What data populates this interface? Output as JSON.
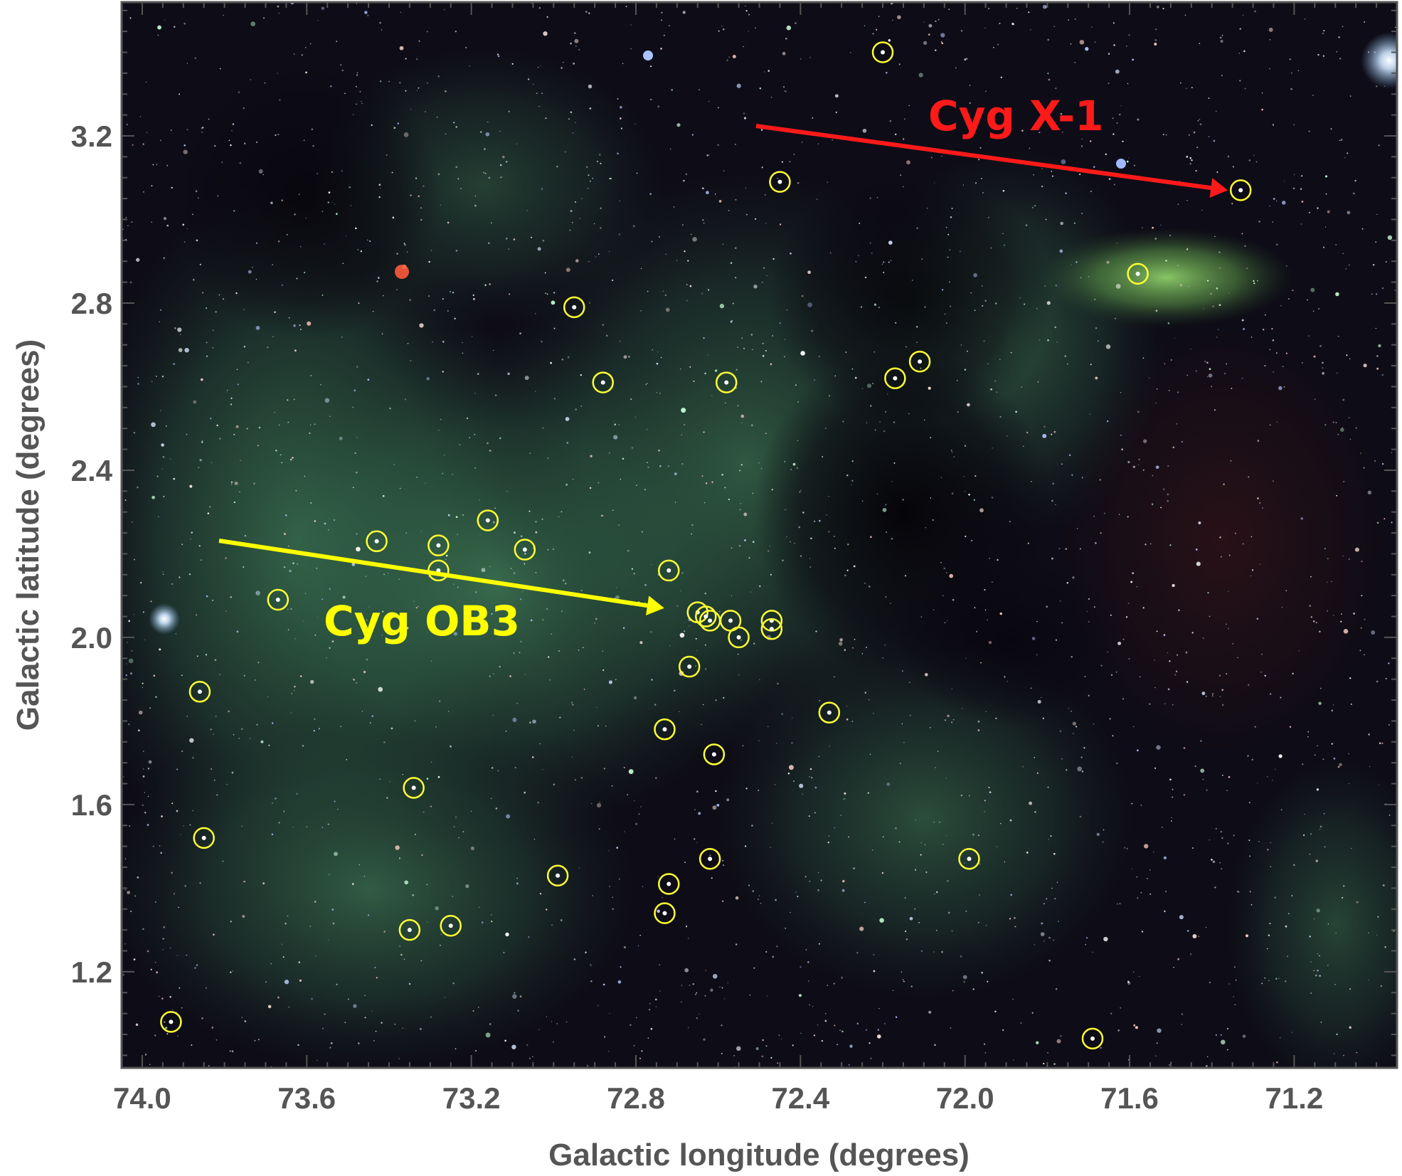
{
  "figure": {
    "x_axis_title": "Galactic longitude (degrees)",
    "y_axis_title": "Galactic latitude (degrees)",
    "x_range": [
      74.05,
      70.95
    ],
    "y_range": [
      0.97,
      3.52
    ],
    "x_tick_labels": [
      "74.0",
      "73.6",
      "73.2",
      "72.8",
      "72.4",
      "72.0",
      "71.6",
      "71.2"
    ],
    "y_tick_labels": [
      "1.2",
      "1.6",
      "2.0",
      "2.4",
      "2.8",
      "3.2"
    ],
    "background_image": "infrared sky mosaic: dark starfield with green nebulosity",
    "annotations": [
      {
        "label": "Cyg X-1",
        "color": "#ff1a1a",
        "target_l": 71.33,
        "target_b": 3.07
      },
      {
        "label": "Cyg OB3",
        "color": "#ffff00",
        "target_l": 72.7,
        "target_b": 2.07
      }
    ],
    "marker_color": "#ffff33",
    "marked_stars": [
      {
        "l": 72.2,
        "b": 3.4
      },
      {
        "l": 72.45,
        "b": 3.09
      },
      {
        "l": 71.33,
        "b": 3.07
      },
      {
        "l": 71.58,
        "b": 2.87
      },
      {
        "l": 72.95,
        "b": 2.79
      },
      {
        "l": 72.11,
        "b": 2.66
      },
      {
        "l": 72.17,
        "b": 2.62
      },
      {
        "l": 72.58,
        "b": 2.61
      },
      {
        "l": 72.88,
        "b": 2.61
      },
      {
        "l": 73.16,
        "b": 2.28
      },
      {
        "l": 73.43,
        "b": 2.23
      },
      {
        "l": 73.28,
        "b": 2.22
      },
      {
        "l": 73.07,
        "b": 2.21
      },
      {
        "l": 72.72,
        "b": 2.16
      },
      {
        "l": 73.28,
        "b": 2.16
      },
      {
        "l": 73.67,
        "b": 2.09
      },
      {
        "l": 72.65,
        "b": 2.06
      },
      {
        "l": 72.63,
        "b": 2.05
      },
      {
        "l": 72.62,
        "b": 2.04
      },
      {
        "l": 72.57,
        "b": 2.04
      },
      {
        "l": 72.47,
        "b": 2.04
      },
      {
        "l": 72.47,
        "b": 2.02
      },
      {
        "l": 72.55,
        "b": 2.0
      },
      {
        "l": 72.67,
        "b": 1.93
      },
      {
        "l": 73.86,
        "b": 1.87
      },
      {
        "l": 72.33,
        "b": 1.82
      },
      {
        "l": 72.73,
        "b": 1.78
      },
      {
        "l": 72.61,
        "b": 1.72
      },
      {
        "l": 73.34,
        "b": 1.64
      },
      {
        "l": 73.85,
        "b": 1.52
      },
      {
        "l": 71.99,
        "b": 1.47
      },
      {
        "l": 72.62,
        "b": 1.47
      },
      {
        "l": 72.99,
        "b": 1.43
      },
      {
        "l": 72.72,
        "b": 1.41
      },
      {
        "l": 72.73,
        "b": 1.34
      },
      {
        "l": 73.35,
        "b": 1.3
      },
      {
        "l": 73.25,
        "b": 1.31
      },
      {
        "l": 73.93,
        "b": 1.08
      },
      {
        "l": 71.69,
        "b": 1.04
      }
    ]
  }
}
